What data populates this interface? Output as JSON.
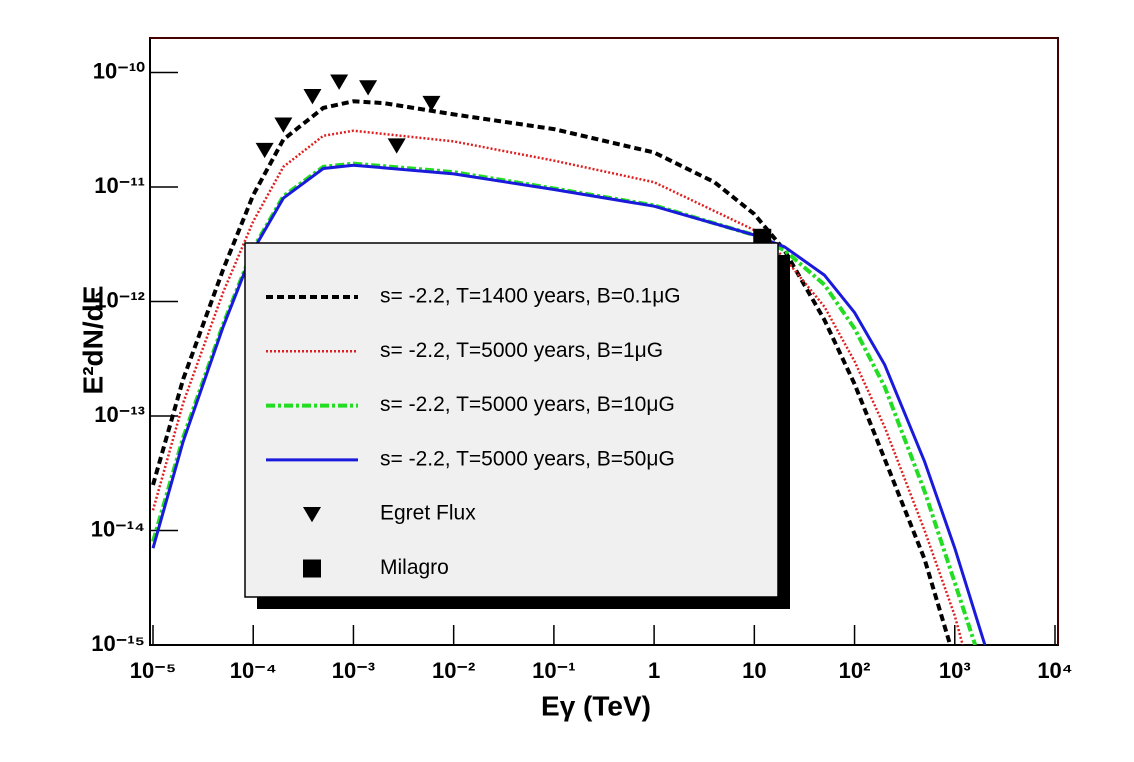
{
  "chart_data": {
    "type": "line",
    "log_x": true,
    "log_y": true,
    "xlabel": "Eγ (TeV)",
    "ylabel": "E²dN/dE",
    "xlim": [
      1e-05,
      10000.0
    ],
    "ylim": [
      1e-15,
      2e-10
    ],
    "xticks": [
      {
        "value": 1e-05,
        "label": "10⁻⁵"
      },
      {
        "value": 0.0001,
        "label": "10⁻⁴"
      },
      {
        "value": 0.001,
        "label": "10⁻³"
      },
      {
        "value": 0.01,
        "label": "10⁻²"
      },
      {
        "value": 0.1,
        "label": "10⁻¹"
      },
      1,
      10,
      {
        "value": 100,
        "label": "10²"
      },
      {
        "value": 1000,
        "label": "10³"
      },
      {
        "value": 10000,
        "label": "10⁴"
      }
    ],
    "yticks": [
      {
        "value": 1e-15,
        "label": "10⁻¹⁵"
      },
      {
        "value": 1e-14,
        "label": "10⁻¹⁴"
      },
      {
        "value": 1e-13,
        "label": "10⁻¹³"
      },
      {
        "value": 1e-12,
        "label": "10⁻¹²"
      },
      {
        "value": 1e-11,
        "label": "10⁻¹¹"
      },
      {
        "value": 1e-10,
        "label": "10⁻¹⁰"
      }
    ],
    "series": [
      {
        "name": "s= -2.2, T=1400 years, B=0.1μG",
        "color": "#000000",
        "style": "dashed",
        "x": [
          1e-05,
          2e-05,
          5e-05,
          0.0001,
          0.0002,
          0.0005,
          0.001,
          0.002,
          0.01,
          0.1,
          1,
          4,
          10,
          20,
          50,
          100,
          200,
          500,
          900
        ],
        "values": [
          2.5e-14,
          2.1e-13,
          1.9e-12,
          8.5e-12,
          2.6e-11,
          4.9e-11,
          5.6e-11,
          5.4e-11,
          4.3e-11,
          3.2e-11,
          2e-11,
          1.1e-11,
          5.8e-12,
          2.8e-12,
          6.9e-13,
          1.9e-13,
          4.2e-14,
          5.6e-15,
          1e-15
        ]
      },
      {
        "name": "s= -2.2, T=5000 years, B=1μG",
        "color": "#e02020",
        "style": "dotted",
        "x": [
          1e-05,
          2e-05,
          5e-05,
          0.0001,
          0.0002,
          0.0005,
          0.001,
          0.01,
          0.1,
          1,
          10,
          20,
          50,
          100,
          200,
          500,
          1000,
          1200
        ],
        "values": [
          1.5e-14,
          1.3e-13,
          1.2e-12,
          5e-12,
          1.5e-11,
          2.8e-11,
          3.1e-11,
          2.5e-11,
          1.7e-11,
          1.1e-11,
          4.2e-12,
          2.4e-12,
          9e-13,
          3e-13,
          8e-14,
          1e-14,
          1.8e-15,
          1e-15
        ]
      },
      {
        "name": "s= -2.2, T=5000 years, B=10μG",
        "color": "#22dd22",
        "style": "dashdot",
        "x": [
          1e-05,
          2e-05,
          5e-05,
          0.0001,
          0.0002,
          0.0005,
          0.001,
          0.01,
          0.1,
          1,
          10,
          20,
          50,
          100,
          200,
          500,
          1000,
          1600
        ],
        "values": [
          8e-15,
          6.5e-14,
          6.3e-13,
          2.9e-12,
          8.3e-12,
          1.5e-11,
          1.6e-11,
          1.35e-11,
          9.7e-12,
          6.9e-12,
          3.8e-12,
          2.8e-12,
          1.4e-12,
          5.8e-13,
          1.8e-13,
          2.2e-14,
          3.5e-15,
          1e-15
        ]
      },
      {
        "name": "s= -2.2, T=5000 years, B=50μG",
        "color": "#1a1adc",
        "style": "solid",
        "x": [
          1e-05,
          2e-05,
          5e-05,
          0.0001,
          0.0002,
          0.0005,
          0.001,
          0.01,
          0.1,
          1,
          10,
          20,
          50,
          100,
          200,
          500,
          1000,
          2000
        ],
        "values": [
          7e-15,
          6e-14,
          6e-13,
          2.8e-12,
          8e-12,
          1.45e-11,
          1.55e-11,
          1.3e-11,
          9.5e-12,
          6.8e-12,
          3.8e-12,
          3e-12,
          1.7e-12,
          8e-13,
          2.8e-13,
          4e-14,
          7e-15,
          1e-15
        ]
      },
      {
        "name": "Egret Flux",
        "color": "#000000",
        "marker": "triangle",
        "x": [
          0.00013,
          0.0002,
          0.00039,
          0.00072,
          0.0014,
          0.0027,
          0.006
        ],
        "values": [
          2.1e-11,
          3.5e-11,
          6.2e-11,
          8.3e-11,
          7.4e-11,
          2.3e-11,
          5.4e-11
        ]
      },
      {
        "name": "Milagro",
        "color": "#000000",
        "marker": "square",
        "x": [
          12
        ],
        "values": [
          3.6e-12
        ]
      }
    ]
  }
}
